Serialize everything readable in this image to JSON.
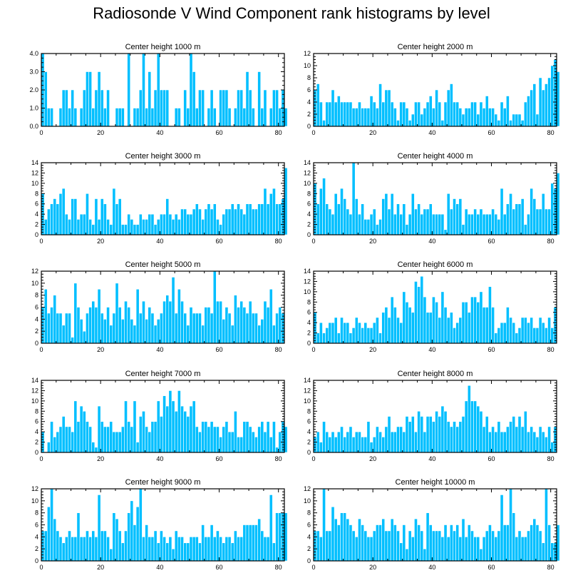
{
  "title": "Radiosonde V Wind Component rank histograms by level",
  "bar_color": "#00bfff",
  "chart_data": [
    {
      "type": "bar",
      "title": "Center height 1000 m",
      "xlim": [
        0,
        82
      ],
      "ylim": [
        0,
        4
      ],
      "xticks": [
        "0",
        "20",
        "40",
        "60",
        "80"
      ],
      "yticks": [
        "0.0",
        "1.0",
        "2.0",
        "3.0",
        "4.0"
      ],
      "values": [
        4,
        3,
        1,
        1,
        0,
        0,
        1,
        2,
        2,
        1,
        2,
        1,
        0,
        1,
        2,
        3,
        3,
        1,
        2,
        3,
        2,
        1,
        2,
        0,
        0,
        1,
        1,
        1,
        0,
        4,
        0,
        1,
        1,
        2,
        4,
        1,
        3,
        1,
        2,
        4,
        2,
        2,
        2,
        0,
        0,
        1,
        1,
        0,
        2,
        1,
        4,
        3,
        1,
        2,
        2,
        0,
        1,
        2,
        1,
        0,
        2,
        2,
        2,
        1,
        0,
        1,
        2,
        2,
        1,
        3,
        2,
        1,
        0,
        3,
        1,
        2,
        0,
        1,
        2,
        2,
        1,
        2,
        1
      ]
    },
    {
      "type": "bar",
      "title": "Center height 2000 m",
      "xlim": [
        0,
        82
      ],
      "ylim": [
        0,
        12
      ],
      "xticks": [
        "0",
        "20",
        "40",
        "60",
        "80"
      ],
      "yticks": [
        "0",
        "2",
        "4",
        "6",
        "8",
        "10",
        "12"
      ],
      "values": [
        6,
        7,
        4,
        1,
        4,
        4,
        6,
        4,
        5,
        4,
        4,
        4,
        4,
        3,
        3,
        4,
        3,
        3,
        3,
        5,
        4,
        3,
        7,
        4,
        6,
        6,
        4,
        3,
        1,
        4,
        4,
        3,
        1,
        2,
        4,
        4,
        2,
        3,
        4,
        5,
        3,
        6,
        4,
        1,
        4,
        6,
        7,
        4,
        4,
        3,
        2,
        3,
        3,
        4,
        4,
        2,
        4,
        3,
        5,
        3,
        3,
        2,
        1,
        4,
        3,
        5,
        1,
        2,
        2,
        2,
        1,
        4,
        5,
        6,
        7,
        2,
        8,
        6,
        7,
        8,
        10,
        11,
        9
      ]
    },
    {
      "type": "bar",
      "title": "Center height 3000 m",
      "xlim": [
        0,
        82
      ],
      "ylim": [
        0,
        14
      ],
      "xticks": [
        "0",
        "20",
        "40",
        "60",
        "80"
      ],
      "yticks": [
        "0",
        "2",
        "4",
        "6",
        "8",
        "10",
        "12",
        "14"
      ],
      "values": [
        8,
        3,
        5,
        6,
        7,
        6,
        8,
        9,
        4,
        3,
        7,
        7,
        3,
        4,
        4,
        8,
        3,
        2,
        7,
        3,
        7,
        6,
        3,
        2,
        9,
        6,
        7,
        2,
        2,
        4,
        3,
        2,
        2,
        4,
        3,
        3,
        4,
        4,
        2,
        3,
        4,
        4,
        7,
        4,
        3,
        4,
        3,
        5,
        5,
        4,
        4,
        5,
        6,
        5,
        3,
        5,
        6,
        5,
        6,
        3,
        2,
        4,
        5,
        5,
        6,
        5,
        6,
        5,
        4,
        6,
        6,
        5,
        5,
        6,
        6,
        9,
        6,
        8,
        9,
        6,
        6,
        7,
        13
      ]
    },
    {
      "type": "bar",
      "title": "Center height 4000 m",
      "xlim": [
        0,
        82
      ],
      "ylim": [
        0,
        14
      ],
      "xticks": [
        "0",
        "20",
        "40",
        "60",
        "80"
      ],
      "yticks": [
        "0",
        "2",
        "4",
        "6",
        "8",
        "10",
        "12",
        "14"
      ],
      "values": [
        10,
        6,
        9,
        11,
        6,
        5,
        4,
        8,
        6,
        9,
        7,
        5,
        4,
        14,
        7,
        4,
        6,
        3,
        3,
        4,
        5,
        2,
        3,
        7,
        8,
        5,
        8,
        4,
        6,
        4,
        6,
        2,
        4,
        8,
        5,
        6,
        4,
        5,
        5,
        6,
        4,
        4,
        4,
        4,
        1,
        8,
        5,
        7,
        6,
        7,
        2,
        5,
        4,
        4,
        5,
        4,
        5,
        4,
        4,
        4,
        5,
        4,
        3,
        9,
        4,
        6,
        8,
        5,
        6,
        6,
        7,
        2,
        4,
        9,
        7,
        5,
        5,
        8,
        5,
        5,
        10,
        9,
        12
      ]
    },
    {
      "type": "bar",
      "title": "Center height 5000 m",
      "xlim": [
        0,
        82
      ],
      "ylim": [
        0,
        12
      ],
      "xticks": [
        "0",
        "20",
        "40",
        "60",
        "80"
      ],
      "yticks": [
        "0",
        "2",
        "4",
        "6",
        "8",
        "10",
        "12"
      ],
      "values": [
        6,
        9,
        5,
        6,
        8,
        5,
        5,
        3,
        5,
        5,
        1,
        10,
        6,
        4,
        2,
        5,
        6,
        7,
        6,
        9,
        5,
        4,
        6,
        3,
        5,
        10,
        6,
        4,
        7,
        6,
        4,
        3,
        9,
        5,
        7,
        4,
        6,
        5,
        3,
        4,
        5,
        7,
        8,
        7,
        11,
        5,
        9,
        7,
        5,
        3,
        6,
        5,
        5,
        5,
        3,
        6,
        6,
        5,
        12,
        7,
        7,
        4,
        6,
        5,
        3,
        8,
        6,
        7,
        6,
        5,
        7,
        5,
        5,
        3,
        4,
        7,
        6,
        9,
        3,
        5,
        6,
        5
      ]
    },
    {
      "type": "bar",
      "title": "Center height 6000 m",
      "xlim": [
        0,
        82
      ],
      "ylim": [
        0,
        14
      ],
      "xticks": [
        "0",
        "20",
        "40",
        "60",
        "80"
      ],
      "yticks": [
        "0",
        "2",
        "4",
        "6",
        "8",
        "10",
        "12",
        "14"
      ],
      "values": [
        6,
        2,
        4,
        2,
        3,
        4,
        4,
        5,
        2,
        5,
        4,
        4,
        2,
        3,
        5,
        4,
        3,
        4,
        3,
        3,
        4,
        5,
        2,
        6,
        7,
        5,
        9,
        7,
        5,
        4,
        10,
        8,
        7,
        6,
        12,
        11,
        13,
        9,
        6,
        6,
        9,
        8,
        5,
        10,
        7,
        5,
        6,
        3,
        4,
        5,
        8,
        8,
        6,
        9,
        9,
        8,
        10,
        7,
        7,
        11,
        7,
        2,
        3,
        4,
        4,
        7,
        5,
        4,
        2,
        3,
        5,
        5,
        4,
        5,
        3,
        3,
        5,
        4,
        3,
        5,
        3,
        7
      ]
    },
    {
      "type": "bar",
      "title": "Center height 7000 m",
      "xlim": [
        0,
        82
      ],
      "ylim": [
        0,
        14
      ],
      "xticks": [
        "0",
        "20",
        "40",
        "60",
        "80"
      ],
      "yticks": [
        "0",
        "2",
        "4",
        "6",
        "8",
        "10",
        "12",
        "14"
      ],
      "values": [
        4,
        0,
        2,
        6,
        3,
        4,
        5,
        7,
        5,
        5,
        4,
        10,
        6,
        9,
        8,
        6,
        5,
        2,
        1,
        9,
        6,
        5,
        5,
        6,
        4,
        4,
        4,
        5,
        10,
        6,
        5,
        10,
        2,
        7,
        8,
        5,
        4,
        6,
        6,
        10,
        7,
        11,
        9,
        12,
        10,
        8,
        12,
        9,
        8,
        7,
        9,
        10,
        5,
        4,
        6,
        6,
        5,
        6,
        5,
        5,
        3,
        5,
        6,
        4,
        4,
        8,
        3,
        3,
        6,
        6,
        5,
        4,
        3,
        5,
        6,
        4,
        6,
        3,
        6,
        1,
        4,
        6,
        5
      ]
    },
    {
      "type": "bar",
      "title": "Center height 8000 m",
      "xlim": [
        0,
        82
      ],
      "ylim": [
        0,
        14
      ],
      "xticks": [
        "0",
        "20",
        "40",
        "60",
        "80"
      ],
      "yticks": [
        "0",
        "2",
        "4",
        "6",
        "8",
        "10",
        "12",
        "14"
      ],
      "values": [
        3,
        4,
        2,
        6,
        4,
        3,
        4,
        3,
        4,
        5,
        3,
        4,
        5,
        3,
        4,
        4,
        3,
        3,
        6,
        2,
        3,
        5,
        4,
        3,
        5,
        7,
        4,
        4,
        5,
        5,
        4,
        7,
        6,
        7,
        4,
        8,
        7,
        4,
        7,
        7,
        6,
        8,
        7,
        9,
        8,
        6,
        5,
        6,
        5,
        6,
        7,
        10,
        13,
        10,
        10,
        9,
        8,
        5,
        7,
        4,
        5,
        4,
        6,
        4,
        4,
        5,
        6,
        7,
        5,
        7,
        5,
        8,
        4,
        5,
        4,
        3,
        5,
        4,
        3,
        5,
        2,
        5
      ]
    },
    {
      "type": "bar",
      "title": "Center height 9000 m",
      "xlim": [
        0,
        82
      ],
      "ylim": [
        0,
        12
      ],
      "xticks": [
        "0",
        "20",
        "40",
        "60",
        "80"
      ],
      "yticks": [
        "0",
        "2",
        "4",
        "6",
        "8",
        "10",
        "12"
      ],
      "values": [
        5,
        5,
        9,
        12,
        7,
        5,
        4,
        3,
        4,
        5,
        4,
        4,
        8,
        4,
        4,
        5,
        4,
        5,
        4,
        11,
        5,
        5,
        4,
        2,
        8,
        7,
        5,
        3,
        5,
        8,
        10,
        6,
        9,
        12,
        4,
        6,
        4,
        4,
        5,
        3,
        5,
        4,
        3,
        4,
        2,
        5,
        4,
        4,
        3,
        3,
        4,
        4,
        4,
        3,
        6,
        4,
        4,
        6,
        4,
        5,
        4,
        3,
        4,
        4,
        3,
        5,
        4,
        4,
        6,
        6,
        6,
        6,
        6,
        7,
        5,
        4,
        4,
        11,
        3,
        8,
        8,
        8,
        8
      ]
    },
    {
      "type": "bar",
      "title": "Center height 10000 m",
      "xlim": [
        0,
        82
      ],
      "ylim": [
        0,
        12
      ],
      "xticks": [
        "0",
        "20",
        "40",
        "60",
        "80"
      ],
      "yticks": [
        "0",
        "2",
        "4",
        "6",
        "8",
        "10",
        "12"
      ],
      "values": [
        5,
        5,
        4,
        12,
        5,
        5,
        9,
        7,
        6,
        8,
        8,
        7,
        6,
        5,
        4,
        7,
        6,
        5,
        4,
        4,
        5,
        6,
        6,
        7,
        5,
        5,
        7,
        6,
        5,
        3,
        6,
        2,
        5,
        4,
        7,
        6,
        5,
        2,
        8,
        6,
        5,
        5,
        5,
        4,
        6,
        4,
        6,
        5,
        6,
        4,
        7,
        4,
        6,
        5,
        4,
        4,
        2,
        4,
        5,
        6,
        5,
        4,
        5,
        11,
        6,
        6,
        12,
        8,
        4,
        5,
        4,
        4,
        5,
        6,
        7,
        6,
        5,
        3,
        12,
        6,
        3,
        3,
        6
      ]
    }
  ]
}
